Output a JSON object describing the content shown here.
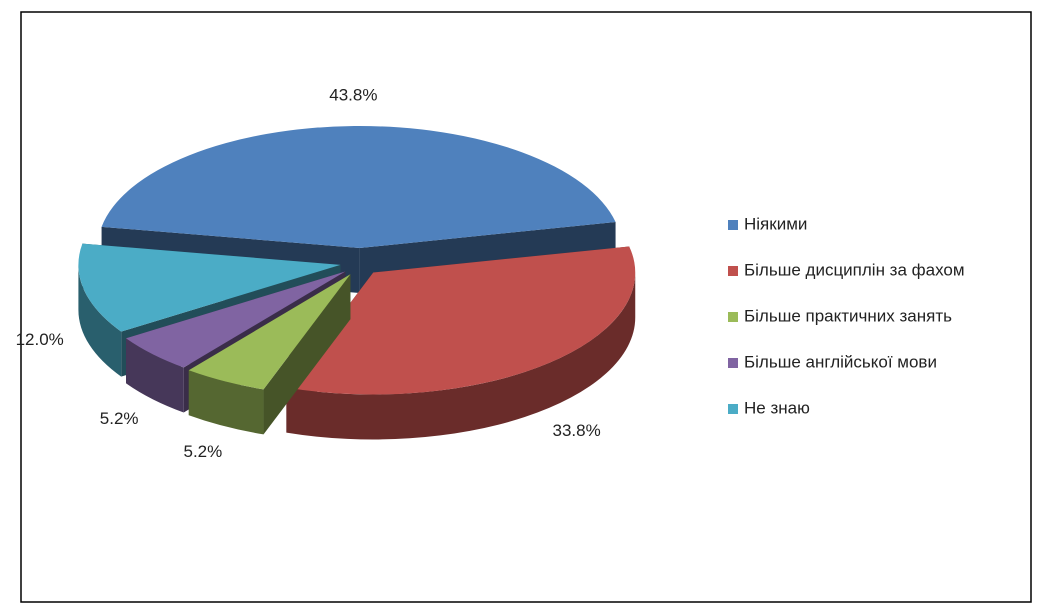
{
  "chart_data": {
    "type": "pie",
    "3d": true,
    "exploded": true,
    "legend": "right",
    "categories": [
      "Ніякими",
      "Більше дисциплін за фахом",
      "Більше практичних занять",
      "Більше англійської мови",
      "Не знаю"
    ],
    "values": [
      43.8,
      33.8,
      5.2,
      5.2,
      12.0
    ],
    "value_labels": [
      "43.8%",
      "33.8%",
      "5.2%",
      "5.2%",
      "12.0%"
    ],
    "colors": [
      "#4f81bd",
      "#c0504d",
      "#9bbb59",
      "#8064a2",
      "#4bacc6"
    ]
  }
}
